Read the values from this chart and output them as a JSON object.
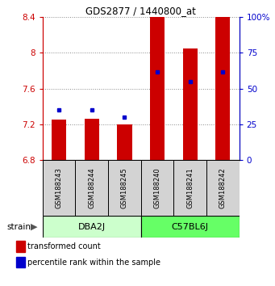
{
  "title": "GDS2877 / 1440800_at",
  "samples": [
    "GSM188243",
    "GSM188244",
    "GSM188245",
    "GSM188240",
    "GSM188241",
    "GSM188242"
  ],
  "bar_values": [
    7.25,
    7.26,
    7.2,
    8.4,
    8.05,
    8.4
  ],
  "bar_bottom": 6.8,
  "percentile_values": [
    35,
    35,
    30,
    62,
    55,
    62
  ],
  "ylim": [
    6.8,
    8.4
  ],
  "yticks": [
    6.8,
    7.2,
    7.6,
    8.0,
    8.4
  ],
  "ytick_labels_left": [
    "6.8",
    "7.2",
    "7.6",
    "8",
    "8.4"
  ],
  "ytick_labels_right": [
    "0",
    "25",
    "50",
    "75",
    "100%"
  ],
  "bar_color": "#cc0000",
  "percentile_color": "#0000cc",
  "group1_label": "DBA2J",
  "group2_label": "C57BL6J",
  "group1_indices": [
    0,
    1,
    2
  ],
  "group2_indices": [
    3,
    4,
    5
  ],
  "group1_color": "#ccffcc",
  "group2_color": "#66ff66",
  "strain_label": "strain",
  "legend_bar_label": "transformed count",
  "legend_pct_label": "percentile rank within the sample",
  "bar_width": 0.45
}
